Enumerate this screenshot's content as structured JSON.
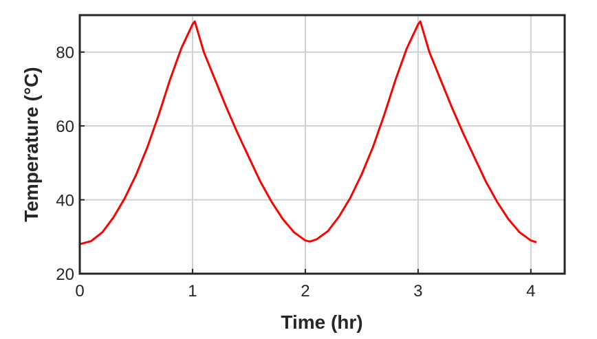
{
  "chart_data": {
    "type": "line",
    "xlabel": "Time (hr)",
    "ylabel": "Temperature (°C)",
    "x": [
      0,
      0.1,
      0.2,
      0.3,
      0.4,
      0.5,
      0.6,
      0.7,
      0.8,
      0.9,
      1.0,
      1.02,
      1.1,
      1.2,
      1.3,
      1.4,
      1.5,
      1.6,
      1.7,
      1.8,
      1.9,
      2.0,
      2.04,
      2.1,
      2.2,
      2.3,
      2.4,
      2.5,
      2.6,
      2.7,
      2.8,
      2.9,
      3.0,
      3.02,
      3.1,
      3.2,
      3.3,
      3.4,
      3.5,
      3.6,
      3.7,
      3.8,
      3.9,
      4.0,
      4.05
    ],
    "series": [
      {
        "name": "Temperature",
        "color": "#ff0000",
        "values": [
          28.0,
          28.8,
          31.2,
          35.3,
          40.5,
          46.8,
          54.3,
          63,
          72.5,
          81,
          87.5,
          88.3,
          80,
          72.5,
          65,
          58,
          51.5,
          45,
          39.5,
          34.8,
          31.2,
          29,
          28.7,
          29.3,
          31.5,
          35.5,
          40.6,
          46.9,
          54.3,
          63,
          72.5,
          81,
          87.5,
          88.3,
          80,
          72.5,
          65,
          58,
          51.5,
          45,
          39.5,
          34.8,
          31.2,
          29,
          28.5
        ]
      }
    ],
    "xlim": [
      0,
      4.3
    ],
    "ylim": [
      20,
      90
    ],
    "xticks": [
      0,
      1,
      2,
      3,
      4
    ],
    "yticks": [
      20,
      40,
      60,
      80
    ],
    "grid": true
  }
}
